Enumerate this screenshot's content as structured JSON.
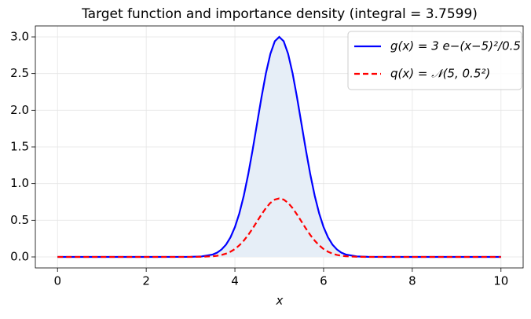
{
  "chart_data": {
    "type": "line",
    "title": "Target function and importance density (integral = 3.7599)",
    "x_label": "x",
    "x": [
      0,
      1,
      2,
      3,
      3.25,
      3.5,
      3.6,
      3.7,
      3.8,
      3.9,
      4.0,
      4.1,
      4.2,
      4.3,
      4.4,
      4.5,
      4.6,
      4.7,
      4.8,
      4.9,
      5.0,
      5.1,
      5.2,
      5.3,
      5.4,
      5.5,
      5.6,
      5.7,
      5.8,
      5.9,
      6.0,
      6.1,
      6.2,
      6.3,
      6.4,
      6.5,
      6.75,
      7,
      8,
      9,
      10
    ],
    "series": [
      {
        "name": "g(x) = 3 e−(x−5)²/0.5",
        "color": "#0000ff",
        "style": "solid",
        "fill": "#e6eef7",
        "values": [
          0,
          0,
          0,
          0.001,
          0.007,
          0.033,
          0.059,
          0.102,
          0.168,
          0.267,
          0.406,
          0.594,
          0.834,
          1.126,
          1.46,
          1.82,
          2.178,
          2.506,
          2.769,
          2.941,
          3,
          2.941,
          2.769,
          2.506,
          2.178,
          1.82,
          1.46,
          1.126,
          0.834,
          0.594,
          0.406,
          0.267,
          0.168,
          0.102,
          0.059,
          0.033,
          0.007,
          0.001,
          0,
          0,
          0
        ]
      },
      {
        "name": "q(x) = 𝒩(5, 0.5²)",
        "color": "#ff0000",
        "style": "dashed",
        "values": [
          0,
          0,
          0,
          0,
          0.002,
          0.009,
          0.016,
          0.027,
          0.045,
          0.071,
          0.108,
          0.158,
          0.222,
          0.299,
          0.388,
          0.484,
          0.579,
          0.667,
          0.737,
          0.782,
          0.798,
          0.782,
          0.737,
          0.667,
          0.579,
          0.484,
          0.388,
          0.299,
          0.222,
          0.158,
          0.108,
          0.071,
          0.045,
          0.027,
          0.016,
          0.009,
          0.002,
          0,
          0,
          0,
          0
        ]
      }
    ],
    "xlim": [
      -0.5,
      10.5
    ],
    "xticks": [
      0,
      2,
      4,
      6,
      8,
      10
    ],
    "ylim": [
      -0.15,
      3.15
    ],
    "yticks": [
      {
        "value": 0,
        "label": "0.0"
      },
      {
        "value": 0.5,
        "label": "0.5"
      },
      {
        "value": 1,
        "label": "1.0"
      },
      {
        "value": 1.5,
        "label": "1.5"
      },
      {
        "value": 2,
        "label": "2.0"
      },
      {
        "value": 2.5,
        "label": "2.5"
      },
      {
        "value": 3,
        "label": "3.0"
      }
    ],
    "grid": true,
    "legend": "upper right"
  }
}
